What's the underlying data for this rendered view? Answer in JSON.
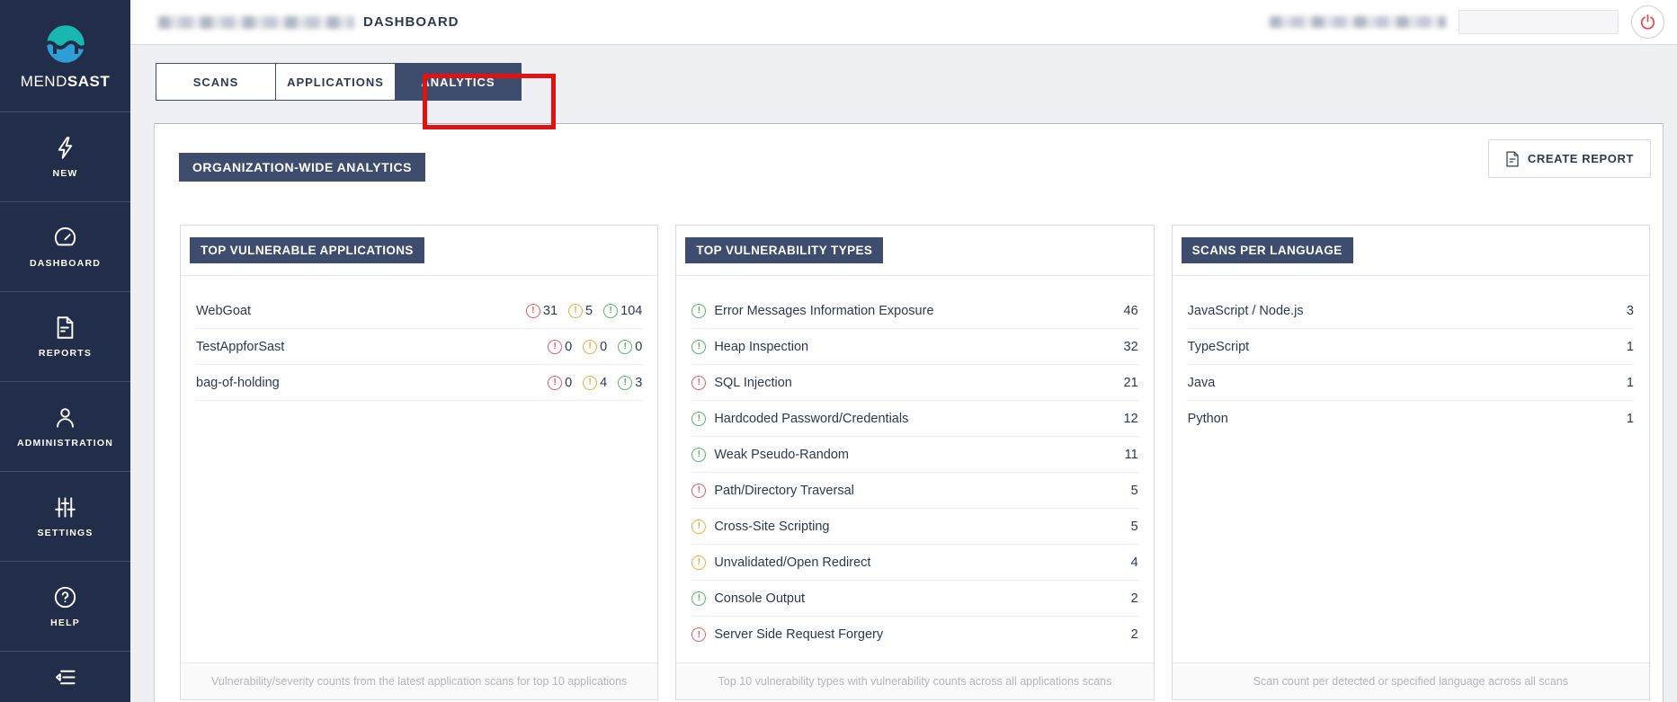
{
  "brand": {
    "mend": "MEND",
    "sast": "SAST"
  },
  "sidebar": {
    "items": [
      {
        "label": "NEW"
      },
      {
        "label": "DASHBOARD"
      },
      {
        "label": "REPORTS"
      },
      {
        "label": "ADMINISTRATION"
      },
      {
        "label": "SETTINGS"
      },
      {
        "label": "HELP"
      }
    ]
  },
  "header": {
    "title_suffix": "DASHBOARD"
  },
  "tabs": [
    {
      "label": "SCANS",
      "active": false
    },
    {
      "label": "APPLICATIONS",
      "active": false
    },
    {
      "label": "ANALYTICS",
      "active": true,
      "annotated": true
    }
  ],
  "panel": {
    "section_title": "ORGANIZATION-WIDE ANALYTICS",
    "create_report_label": "CREATE REPORT"
  },
  "cards": {
    "vulnerable_apps": {
      "title": "TOP VULNERABLE APPLICATIONS",
      "rows": [
        {
          "name": "WebGoat",
          "high": "31",
          "medium": "5",
          "low": "104"
        },
        {
          "name": "TestAppforSast",
          "high": "0",
          "medium": "0",
          "low": "0"
        },
        {
          "name": "bag-of-holding",
          "high": "0",
          "medium": "4",
          "low": "3"
        }
      ],
      "footer": "Vulnerability/severity counts from the latest application scans for top 10 applications"
    },
    "vuln_types": {
      "title": "TOP VULNERABILITY TYPES",
      "rows": [
        {
          "severity": "low",
          "label": "Error Messages Information Exposure",
          "count": "46"
        },
        {
          "severity": "low",
          "label": "Heap Inspection",
          "count": "32"
        },
        {
          "severity": "high",
          "label": "SQL Injection",
          "count": "21"
        },
        {
          "severity": "low",
          "label": "Hardcoded Password/Credentials",
          "count": "12"
        },
        {
          "severity": "low",
          "label": "Weak Pseudo-Random",
          "count": "11"
        },
        {
          "severity": "high",
          "label": "Path/Directory Traversal",
          "count": "5"
        },
        {
          "severity": "medium",
          "label": "Cross-Site Scripting",
          "count": "5"
        },
        {
          "severity": "medium",
          "label": "Unvalidated/Open Redirect",
          "count": "4"
        },
        {
          "severity": "low",
          "label": "Console Output",
          "count": "2"
        },
        {
          "severity": "high",
          "label": "Server Side Request Forgery",
          "count": "2"
        }
      ],
      "footer": "Top 10 vulnerability types with vulnerability counts across all applications scans"
    },
    "scans_per_language": {
      "title": "SCANS PER LANGUAGE",
      "rows": [
        {
          "label": "JavaScript / Node.js",
          "count": "3"
        },
        {
          "label": "TypeScript",
          "count": "1"
        },
        {
          "label": "Java",
          "count": "1"
        },
        {
          "label": "Python",
          "count": "1"
        }
      ],
      "footer": "Scan count per detected or specified language across all scans"
    }
  },
  "colors": {
    "sidebar_navy": "#222d49",
    "accent_navy": "#3e4d6e",
    "annotation_red": "#e01212",
    "severity_high": "#e25d63",
    "severity_medium": "#efa93f",
    "severity_low": "#4fb65c",
    "logo_teal": "#18b7b0",
    "logo_blue": "#2e9fd4",
    "power_red": "#e8474b"
  }
}
